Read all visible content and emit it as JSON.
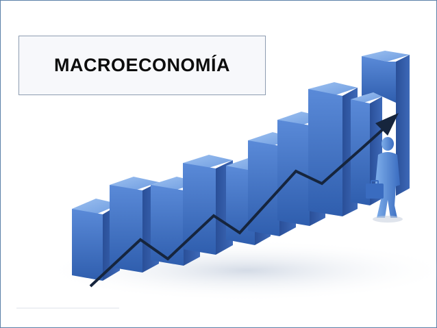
{
  "slide": {
    "title": "MACROECONOMÍA"
  },
  "illustration": {
    "bar_color": "#3f6fc4",
    "bar_top_color": "#7aa6e6",
    "bar_side_color": "#2a4f98",
    "arrow_color": "#16253d",
    "figure_color": "#4f86d6",
    "border_color": "#5b7fa8"
  }
}
